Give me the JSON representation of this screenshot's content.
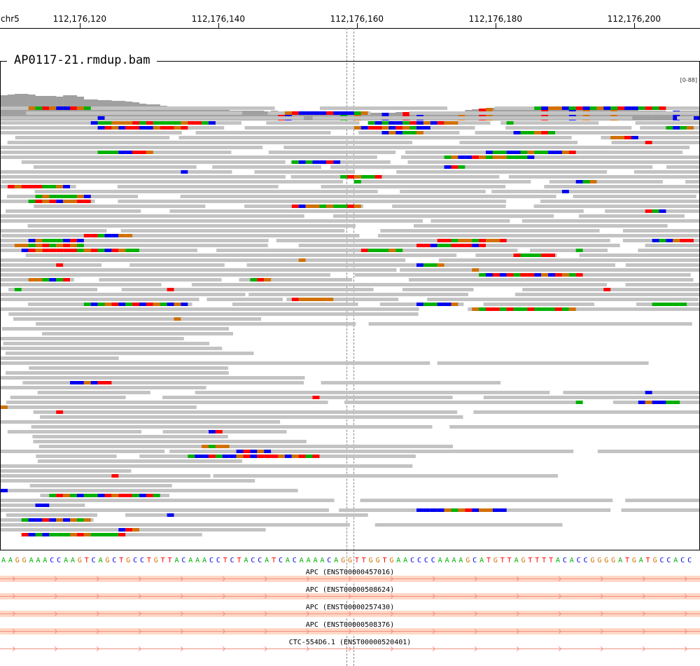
{
  "ruler": {
    "chromosome": "chr5",
    "ticks": [
      {
        "label": "112,176,120",
        "base_index": 11.5
      },
      {
        "label": "112,176,140",
        "base_index": 31.5
      },
      {
        "label": "112,176,160",
        "base_index": 51.5
      },
      {
        "label": "112,176,180",
        "base_index": 71.5
      },
      {
        "label": "112,176,200",
        "base_index": 91.5
      }
    ]
  },
  "track": {
    "name": "AP0117-21.rmdup.bam",
    "coverage_range": "[0-88]"
  },
  "sequence": "AAGGAAACCAAGTCAGCTGCCTGTTACAAACCTCTACCATCACAAAACAGGTTGGTGAACCCCAAAAGCATGTTAGTTTTACACCGGGGATGATGCCACC",
  "colors": {
    "A": "#00b000",
    "C": "#0000f0",
    "G": "#d17105",
    "T": "#ff0000",
    "read": "#c3c3c3",
    "coverage": "#a0a0a0",
    "gene_bar": "#ffd7c6",
    "gene_line": "#f08f7f"
  },
  "genes": [
    {
      "label": "APC (ENST00000457016)"
    },
    {
      "label": "APC (ENST00000508624)"
    },
    {
      "label": "APC (ENST00000257430)"
    },
    {
      "label": "APC (ENST00000508376)"
    },
    {
      "label": "CTC-554D6.1 (ENST00000520401)"
    }
  ]
}
